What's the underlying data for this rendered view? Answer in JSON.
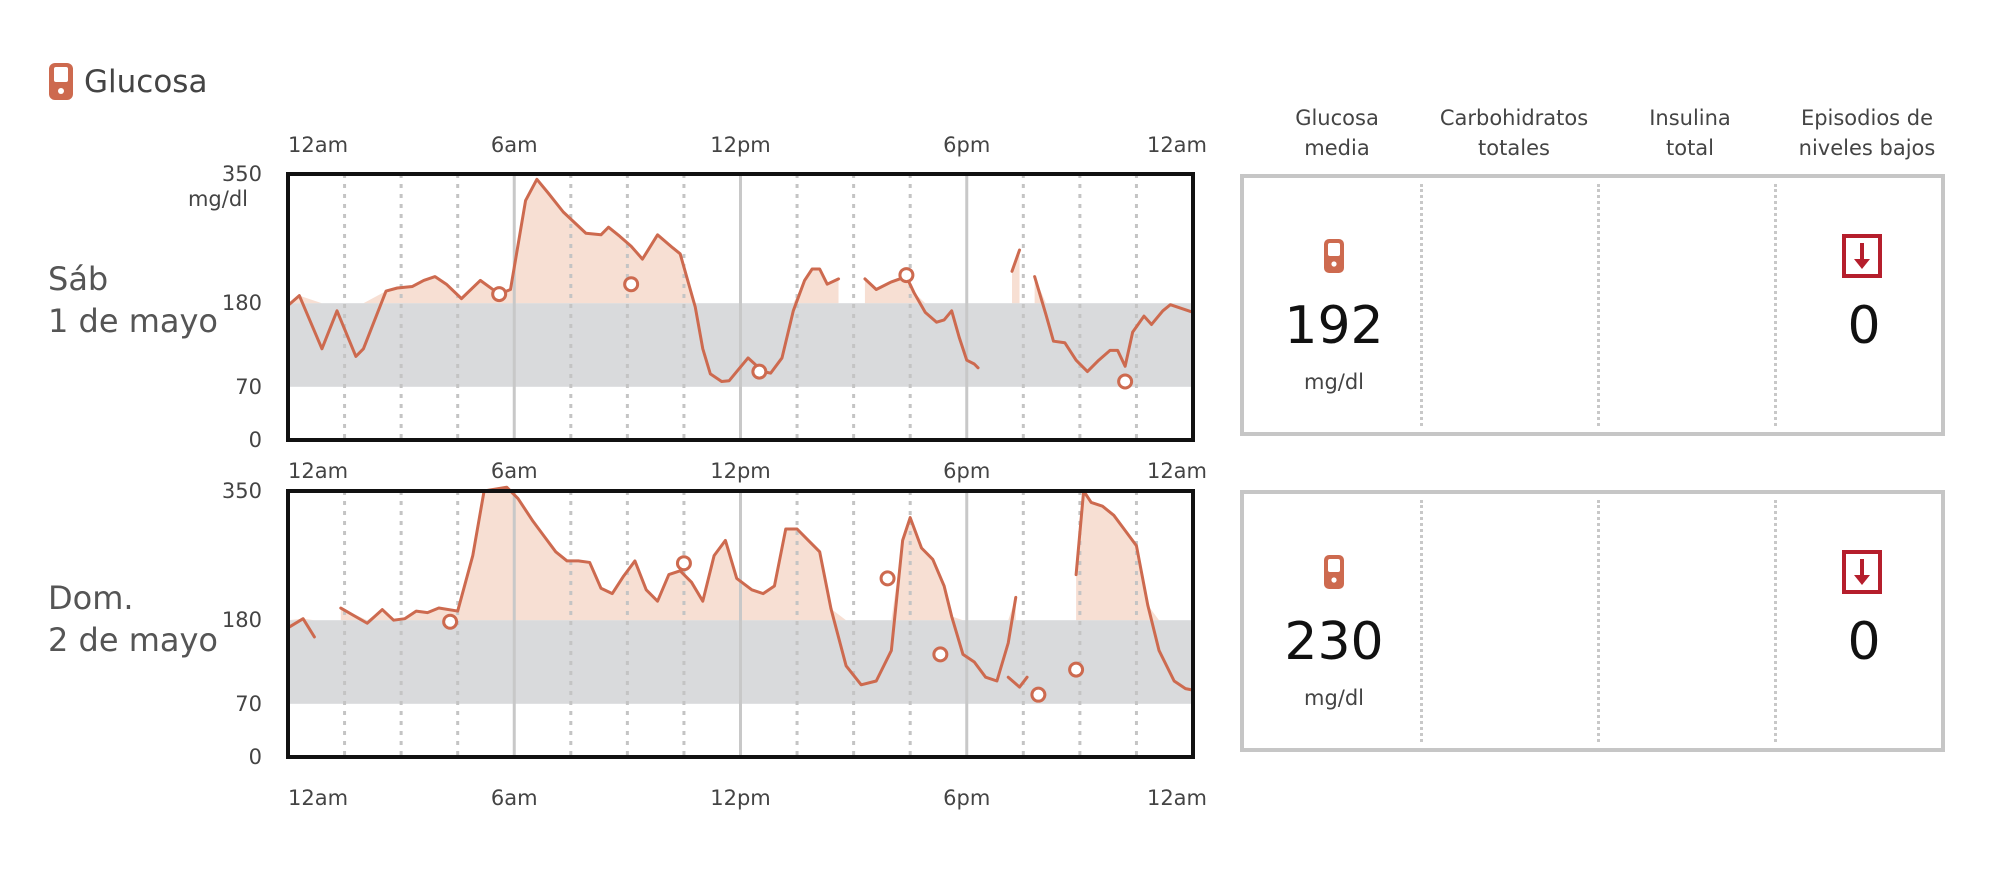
{
  "header": {
    "title": "Glucosa",
    "icon": "meter-icon",
    "accent_color": "#cd6a4f"
  },
  "colors": {
    "line": "#cd6a4f",
    "fill": "#f7dfd3",
    "target_band": "#d9dadc",
    "alert": "#b51e2c"
  },
  "chart_data": [
    {
      "type": "line",
      "day_label": [
        "Sáb",
        "1 de mayo"
      ],
      "x_unit": "hours",
      "xlim": [
        0,
        24
      ],
      "ylim": [
        0,
        350
      ],
      "ytick_labels": [
        "350",
        "180",
        "70",
        "0"
      ],
      "yticks": [
        350,
        180,
        70,
        0
      ],
      "ylabel_unit": "mg/dl",
      "xtick_labels": [
        "12am",
        "6am",
        "12pm",
        "6pm",
        "12am"
      ],
      "xticks": [
        0,
        6,
        12,
        18,
        24
      ],
      "target_range": [
        70,
        180
      ],
      "high_threshold": 180,
      "segments": [
        [
          [
            0,
            177
          ],
          [
            0.3,
            190
          ],
          [
            0.9,
            120
          ],
          [
            1.3,
            170
          ],
          [
            1.8,
            110
          ],
          [
            2.0,
            120
          ],
          [
            2.6,
            196
          ],
          [
            2.9,
            200
          ],
          [
            3.3,
            202
          ],
          [
            3.6,
            210
          ],
          [
            3.9,
            215
          ],
          [
            4.2,
            205
          ],
          [
            4.6,
            186
          ],
          [
            5.1,
            210
          ],
          [
            5.6,
            192
          ],
          [
            5.9,
            198
          ],
          [
            6.3,
            315
          ],
          [
            6.6,
            343
          ],
          [
            6.9,
            325
          ],
          [
            7.3,
            300
          ],
          [
            7.9,
            272
          ],
          [
            8.3,
            270
          ],
          [
            8.5,
            280
          ],
          [
            8.8,
            268
          ],
          [
            9.1,
            255
          ],
          [
            9.4,
            238
          ],
          [
            9.8,
            270
          ],
          [
            10.2,
            253
          ],
          [
            10.4,
            245
          ],
          [
            10.8,
            175
          ],
          [
            11.0,
            120
          ],
          [
            11.2,
            87
          ],
          [
            11.5,
            77
          ],
          [
            11.7,
            78
          ],
          [
            11.9,
            90
          ],
          [
            12.2,
            108
          ],
          [
            12.6,
            90
          ],
          [
            12.8,
            88
          ],
          [
            13.1,
            108
          ],
          [
            13.4,
            170
          ],
          [
            13.7,
            210
          ],
          [
            13.9,
            225
          ],
          [
            14.1,
            225
          ],
          [
            14.3,
            205
          ],
          [
            14.6,
            212
          ]
        ],
        [
          [
            15.3,
            212
          ],
          [
            15.6,
            198
          ],
          [
            16.0,
            208
          ],
          [
            16.4,
            215
          ],
          [
            16.6,
            194
          ],
          [
            16.9,
            168
          ],
          [
            17.2,
            155
          ],
          [
            17.4,
            158
          ],
          [
            17.6,
            170
          ],
          [
            17.8,
            135
          ],
          [
            18.0,
            105
          ],
          [
            18.2,
            100
          ],
          [
            18.3,
            95
          ]
        ],
        [
          [
            19.2,
            222
          ],
          [
            19.4,
            250
          ]
        ],
        [
          [
            19.8,
            215
          ],
          [
            20.1,
            165
          ],
          [
            20.3,
            130
          ],
          [
            20.6,
            128
          ],
          [
            20.9,
            105
          ],
          [
            21.2,
            90
          ],
          [
            21.5,
            105
          ],
          [
            21.8,
            118
          ],
          [
            22.0,
            118
          ],
          [
            22.2,
            97
          ],
          [
            22.4,
            142
          ],
          [
            22.7,
            163
          ],
          [
            22.9,
            152
          ],
          [
            23.2,
            170
          ],
          [
            23.4,
            178
          ],
          [
            24.0,
            168
          ]
        ]
      ],
      "markers": [
        [
          5.6,
          192
        ],
        [
          9.1,
          205
        ],
        [
          12.5,
          90
        ],
        [
          16.4,
          217
        ],
        [
          22.2,
          77
        ]
      ]
    },
    {
      "type": "line",
      "day_label": [
        "Dom.",
        "2 de mayo"
      ],
      "x_unit": "hours",
      "xlim": [
        0,
        24
      ],
      "ylim": [
        0,
        350
      ],
      "ytick_labels": [
        "350",
        "180",
        "70",
        "0"
      ],
      "yticks": [
        350,
        180,
        70,
        0
      ],
      "xtick_labels_top": [
        "12am",
        "6am",
        "12pm",
        "6pm",
        "12am"
      ],
      "xtick_labels_bottom": [
        "12am",
        "6am",
        "12pm",
        "6pm",
        "12am"
      ],
      "xticks": [
        0,
        6,
        12,
        18,
        24
      ],
      "target_range": [
        70,
        180
      ],
      "high_threshold": 180,
      "segments": [
        [
          [
            0,
            170
          ],
          [
            0.4,
            182
          ],
          [
            0.7,
            158
          ]
        ],
        [
          [
            1.4,
            196
          ],
          [
            2.1,
            176
          ],
          [
            2.5,
            194
          ],
          [
            2.8,
            180
          ],
          [
            3.1,
            182
          ],
          [
            3.4,
            192
          ],
          [
            3.7,
            190
          ],
          [
            4.0,
            196
          ],
          [
            4.5,
            192
          ],
          [
            4.9,
            265
          ],
          [
            5.2,
            350
          ],
          [
            5.8,
            355
          ],
          [
            6.1,
            340
          ],
          [
            6.5,
            310
          ],
          [
            6.8,
            290
          ],
          [
            7.1,
            270
          ],
          [
            7.4,
            258
          ],
          [
            7.7,
            258
          ],
          [
            8.0,
            256
          ],
          [
            8.3,
            222
          ],
          [
            8.6,
            215
          ],
          [
            8.9,
            238
          ],
          [
            9.2,
            258
          ],
          [
            9.5,
            220
          ],
          [
            9.8,
            205
          ],
          [
            10.1,
            240
          ],
          [
            10.4,
            245
          ],
          [
            10.7,
            230
          ],
          [
            11.0,
            205
          ],
          [
            11.3,
            265
          ],
          [
            11.6,
            285
          ],
          [
            11.9,
            235
          ],
          [
            12.3,
            220
          ],
          [
            12.6,
            215
          ],
          [
            12.9,
            225
          ],
          [
            13.2,
            300
          ],
          [
            13.5,
            300
          ],
          [
            13.8,
            285
          ],
          [
            14.1,
            270
          ],
          [
            14.4,
            195
          ],
          [
            14.8,
            120
          ],
          [
            15.2,
            95
          ],
          [
            15.6,
            100
          ],
          [
            16.0,
            140
          ],
          [
            16.3,
            285
          ],
          [
            16.5,
            315
          ],
          [
            16.8,
            275
          ],
          [
            17.1,
            260
          ],
          [
            17.4,
            225
          ],
          [
            17.6,
            185
          ],
          [
            17.9,
            135
          ],
          [
            18.2,
            125
          ],
          [
            18.5,
            105
          ],
          [
            18.8,
            100
          ],
          [
            19.1,
            150
          ],
          [
            19.3,
            210
          ]
        ],
        [
          [
            19.1,
            105
          ],
          [
            19.4,
            92
          ],
          [
            19.6,
            105
          ]
        ],
        [
          [
            20.9,
            240
          ],
          [
            21.1,
            350
          ],
          [
            21.3,
            335
          ],
          [
            21.6,
            330
          ],
          [
            21.9,
            318
          ],
          [
            22.2,
            298
          ],
          [
            22.5,
            278
          ],
          [
            22.8,
            200
          ],
          [
            23.1,
            140
          ],
          [
            23.5,
            100
          ],
          [
            23.8,
            90
          ],
          [
            24,
            88
          ]
        ]
      ],
      "markers": [
        [
          4.3,
          178
        ],
        [
          10.5,
          255
        ],
        [
          15.9,
          235
        ],
        [
          17.3,
          135
        ],
        [
          19.9,
          82
        ],
        [
          20.9,
          115
        ]
      ]
    }
  ],
  "stats": {
    "headers": [
      [
        "Glucosa",
        "media"
      ],
      [
        "Carbohidratos",
        "totales"
      ],
      [
        "Insulina",
        "total"
      ],
      [
        "Episodios de",
        "niveles bajos"
      ]
    ],
    "rows": [
      {
        "avg_glucose": "192",
        "avg_unit": "mg/dl",
        "low_episodes": "0"
      },
      {
        "avg_glucose": "230",
        "avg_unit": "mg/dl",
        "low_episodes": "0"
      }
    ]
  }
}
